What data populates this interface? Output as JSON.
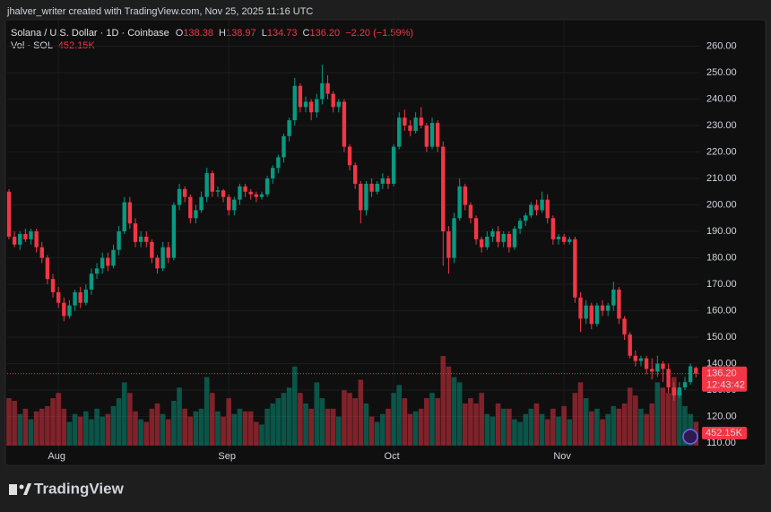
{
  "header": {
    "attribution": "jhalver_writer created with TradingView.com, Nov 25, 2025 11:16 UTC"
  },
  "legend": {
    "symbol": "Solana / U.S. Dollar · 1D · Coinbase",
    "items": [
      {
        "key": "O",
        "value": "138.38"
      },
      {
        "key": "H",
        "value": "138.97"
      },
      {
        "key": "L",
        "value": "134.73"
      },
      {
        "key": "C",
        "value": "136.20"
      }
    ],
    "change": "−2.20 (−1.59%)",
    "volume_name": "Vol · SOL",
    "volume_value": "452.15K"
  },
  "branding": "TradingView",
  "chart_data": {
    "type": "candlestick",
    "categories": [
      null,
      null,
      null,
      null,
      null,
      null,
      null,
      null,
      null,
      "Aug",
      null,
      null,
      null,
      null,
      null,
      null,
      null,
      null,
      null,
      null,
      null,
      null,
      null,
      null,
      null,
      null,
      null,
      null,
      null,
      null,
      null,
      null,
      null,
      null,
      null,
      null,
      null,
      null,
      null,
      null,
      "Sep",
      null,
      null,
      null,
      null,
      null,
      null,
      null,
      null,
      null,
      null,
      null,
      null,
      null,
      null,
      null,
      null,
      null,
      null,
      null,
      null,
      null,
      null,
      null,
      null,
      null,
      null,
      null,
      null,
      null,
      "Oct",
      null,
      null,
      null,
      null,
      null,
      null,
      null,
      null,
      null,
      null,
      null,
      null,
      null,
      null,
      null,
      null,
      null,
      null,
      null,
      null,
      null,
      null,
      null,
      null,
      null,
      null,
      null,
      null,
      null,
      null,
      "Nov",
      null,
      null,
      null,
      null,
      null,
      null,
      null,
      null,
      null,
      null,
      null,
      null,
      null,
      null,
      null,
      null,
      null,
      null,
      null,
      null,
      null,
      null,
      null,
      null
    ],
    "ohlc": [
      [
        205,
        206,
        187,
        188
      ],
      [
        188,
        190,
        184,
        185
      ],
      [
        185,
        190,
        183,
        189
      ],
      [
        189,
        191,
        186,
        187
      ],
      [
        187,
        191,
        185,
        190
      ],
      [
        190,
        191,
        182,
        184
      ],
      [
        184,
        186,
        178,
        180
      ],
      [
        180,
        181,
        170,
        172
      ],
      [
        172,
        174,
        165,
        167
      ],
      [
        167,
        169,
        161,
        163
      ],
      [
        163,
        165,
        156,
        158
      ],
      [
        158,
        164,
        157,
        162
      ],
      [
        162,
        168,
        160,
        167
      ],
      [
        167,
        169,
        161,
        163
      ],
      [
        163,
        170,
        162,
        168
      ],
      [
        168,
        176,
        166,
        174
      ],
      [
        174,
        178,
        172,
        176
      ],
      [
        176,
        182,
        174,
        180
      ],
      [
        180,
        182,
        175,
        177
      ],
      [
        177,
        185,
        176,
        183
      ],
      [
        183,
        192,
        181,
        190
      ],
      [
        190,
        203,
        189,
        201
      ],
      [
        201,
        203,
        191,
        193
      ],
      [
        193,
        195,
        184,
        186
      ],
      [
        186,
        190,
        184,
        188
      ],
      [
        188,
        190,
        184,
        186
      ],
      [
        186,
        187,
        178,
        180
      ],
      [
        180,
        181,
        174,
        176
      ],
      [
        176,
        186,
        175,
        184
      ],
      [
        184,
        186,
        178,
        180
      ],
      [
        180,
        201,
        179,
        200
      ],
      [
        200,
        208,
        198,
        206
      ],
      [
        206,
        207,
        201,
        203
      ],
      [
        203,
        204,
        193,
        195
      ],
      [
        195,
        200,
        193,
        198
      ],
      [
        198,
        205,
        197,
        203
      ],
      [
        203,
        214,
        201,
        212
      ],
      [
        212,
        213,
        203,
        205
      ],
      [
        205,
        207,
        203,
        205.5
      ],
      [
        205.5,
        206,
        201,
        203
      ],
      [
        203,
        204,
        196,
        198
      ],
      [
        198,
        203,
        196,
        202
      ],
      [
        202,
        208,
        200,
        207
      ],
      [
        207,
        208,
        203,
        205
      ],
      [
        205,
        206,
        202,
        204
      ],
      [
        204,
        205,
        201,
        203
      ],
      [
        203,
        205,
        202,
        204
      ],
      [
        204,
        211,
        203,
        210
      ],
      [
        210,
        215,
        208,
        214
      ],
      [
        214,
        219,
        212,
        218
      ],
      [
        218,
        227,
        216,
        226
      ],
      [
        226,
        233,
        224,
        232
      ],
      [
        232,
        248,
        230,
        245
      ],
      [
        245,
        246,
        235,
        237
      ],
      [
        237,
        241,
        235,
        239
      ],
      [
        239,
        240,
        232,
        235
      ],
      [
        235,
        242,
        233,
        240
      ],
      [
        240,
        253,
        238,
        246
      ],
      [
        246,
        249,
        240,
        242
      ],
      [
        242,
        243,
        235,
        237
      ],
      [
        237,
        240,
        235,
        239
      ],
      [
        239,
        240,
        220,
        222
      ],
      [
        222,
        223,
        213,
        215
      ],
      [
        215,
        216,
        206,
        208
      ],
      [
        208,
        209,
        193,
        198
      ],
      [
        198,
        209,
        196,
        208
      ],
      [
        208,
        210,
        203,
        205
      ],
      [
        205,
        209,
        204,
        208
      ],
      [
        208,
        212,
        206,
        210
      ],
      [
        210,
        211,
        206,
        208
      ],
      [
        208,
        223,
        207,
        222
      ],
      [
        222,
        235,
        221,
        233
      ],
      [
        233,
        236,
        228,
        230
      ],
      [
        230,
        232,
        226,
        228
      ],
      [
        228,
        235,
        227,
        233
      ],
      [
        233,
        237,
        229,
        230
      ],
      [
        230,
        231,
        220,
        222
      ],
      [
        222,
        233,
        221,
        231
      ],
      [
        231,
        232,
        220,
        222
      ],
      [
        222,
        224,
        177,
        190
      ],
      [
        190,
        192,
        174,
        180
      ],
      [
        180,
        197,
        178,
        195
      ],
      [
        195,
        210,
        194,
        207
      ],
      [
        207,
        208,
        198,
        200
      ],
      [
        200,
        201,
        193,
        195
      ],
      [
        195,
        196,
        185,
        187
      ],
      [
        187,
        188,
        182,
        184
      ],
      [
        184,
        190,
        183,
        188
      ],
      [
        188,
        191,
        186,
        190
      ],
      [
        190,
        192,
        184,
        186
      ],
      [
        186,
        190,
        184,
        189
      ],
      [
        189,
        190,
        182,
        184
      ],
      [
        184,
        192,
        183,
        191
      ],
      [
        191,
        195,
        189,
        194
      ],
      [
        194,
        197,
        192,
        196
      ],
      [
        196,
        201,
        195,
        200
      ],
      [
        200,
        202,
        196,
        198
      ],
      [
        198,
        205,
        197,
        202
      ],
      [
        202,
        204,
        193,
        195
      ],
      [
        195,
        196,
        185,
        187
      ],
      [
        187,
        189,
        185,
        188
      ],
      [
        188,
        189,
        185,
        186
      ],
      [
        186,
        188,
        185,
        187
      ],
      [
        187,
        188,
        163,
        165
      ],
      [
        165,
        167,
        152,
        157
      ],
      [
        157,
        164,
        155,
        162
      ],
      [
        162,
        163,
        153,
        155
      ],
      [
        155,
        163,
        154,
        162
      ],
      [
        162,
        164,
        158,
        160
      ],
      [
        160,
        163,
        158,
        162
      ],
      [
        162,
        171,
        160,
        168
      ],
      [
        168,
        169,
        155,
        157
      ],
      [
        157,
        158,
        149,
        151
      ],
      [
        151,
        152,
        142,
        143
      ],
      [
        143,
        145,
        139,
        141
      ],
      [
        141,
        143,
        139,
        142
      ],
      [
        142,
        143,
        136,
        138
      ],
      [
        138,
        142,
        134,
        137
      ],
      [
        137,
        143,
        135,
        140
      ],
      [
        140,
        141,
        133,
        138
      ],
      [
        138,
        140,
        129,
        131
      ],
      [
        131,
        133,
        126,
        128
      ],
      [
        128,
        133,
        127,
        131
      ],
      [
        131,
        135,
        130,
        133
      ],
      [
        133,
        140,
        132,
        139
      ],
      [
        138.38,
        138.97,
        134.73,
        136.2
      ]
    ],
    "volumes": [
      900,
      850,
      600,
      700,
      500,
      650,
      700,
      750,
      900,
      1000,
      700,
      450,
      600,
      550,
      650,
      500,
      700,
      550,
      600,
      750,
      900,
      1200,
      1000,
      650,
      500,
      450,
      700,
      800,
      600,
      500,
      850,
      1100,
      700,
      550,
      650,
      700,
      1300,
      1000,
      650,
      550,
      900,
      600,
      700,
      650,
      650,
      450,
      400,
      700,
      800,
      900,
      1000,
      1100,
      1500,
      1000,
      800,
      700,
      1200,
      900,
      700,
      700,
      550,
      1050,
      1000,
      900,
      1250,
      800,
      550,
      450,
      600,
      700,
      1000,
      1150,
      900,
      600,
      650,
      700,
      900,
      1000,
      900,
      1700,
      1500,
      1300,
      1200,
      800,
      900,
      800,
      1000,
      600,
      550,
      800,
      700,
      700,
      500,
      450,
      600,
      700,
      800,
      600,
      500,
      700,
      550,
      750,
      500,
      1000,
      1200,
      900,
      650,
      700,
      500,
      600,
      750,
      700,
      800,
      1100,
      950,
      700,
      600,
      800,
      1200,
      1100,
      1000,
      1300,
      1050,
      750,
      600,
      452.15
    ],
    "countdown": "12:43:42",
    "ylim": [
      109,
      270
    ],
    "yticks": [
      {
        "value": 110,
        "label": "110.00"
      },
      {
        "value": 120,
        "label": "120.00"
      },
      {
        "value": 130,
        "label": "130.00"
      },
      {
        "value": 140,
        "label": "140.00"
      },
      {
        "value": 150,
        "label": "150.00"
      },
      {
        "value": 160,
        "label": "160.00"
      },
      {
        "value": 170,
        "label": "170.00"
      },
      {
        "value": 180,
        "label": "180.00"
      },
      {
        "value": 190,
        "label": "190.00"
      },
      {
        "value": 200,
        "label": "200.00"
      },
      {
        "value": 210,
        "label": "210.00"
      },
      {
        "value": 220,
        "label": "220.00"
      },
      {
        "value": 230,
        "label": "230.00"
      },
      {
        "value": 240,
        "label": "240.00"
      },
      {
        "value": 250,
        "label": "250.00"
      },
      {
        "value": 260,
        "label": "260.00"
      }
    ],
    "up_color": "#089981",
    "down_color": "#f23645",
    "grid": true
  }
}
